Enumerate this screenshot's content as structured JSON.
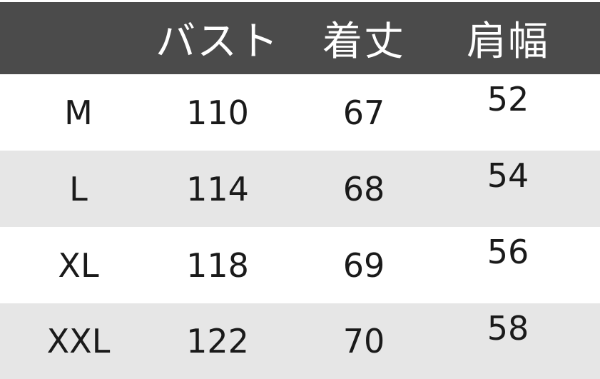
{
  "table": {
    "headers": [
      "",
      "バスト",
      "着丈",
      "肩幅"
    ],
    "rows": [
      [
        "M",
        "110",
        "67",
        "52"
      ],
      [
        "L",
        "114",
        "68",
        "54"
      ],
      [
        "XL",
        "118",
        "69",
        "56"
      ],
      [
        "XXL",
        "122",
        "70",
        "58"
      ]
    ]
  },
  "colors": {
    "header_bg": "#4b4b4b",
    "stripe_bg": "#e6e6e6",
    "header_text": "#ffffff"
  }
}
